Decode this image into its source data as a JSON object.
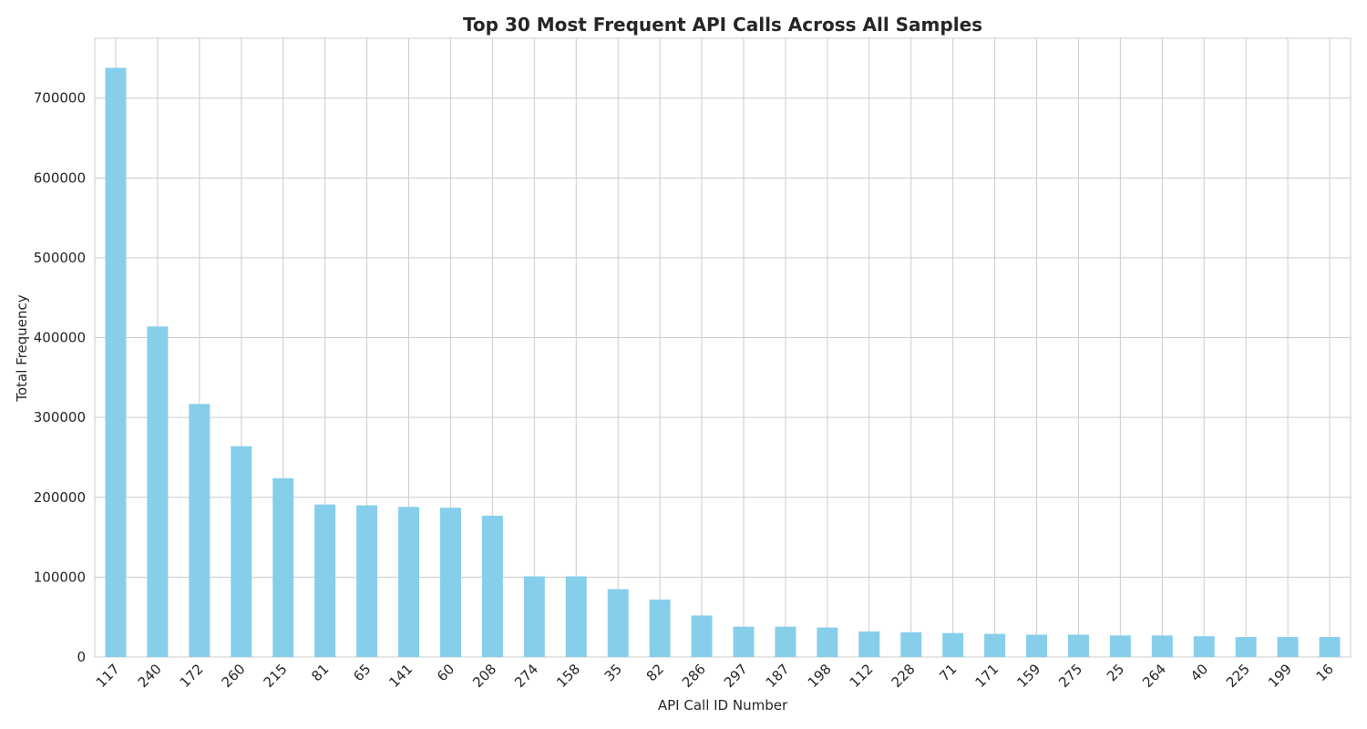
{
  "chart_data": {
    "type": "bar",
    "title": "Top 30 Most Frequent API Calls Across All Samples",
    "xlabel": "API Call ID Number",
    "ylabel": "Total Frequency",
    "categories": [
      "117",
      "240",
      "172",
      "260",
      "215",
      "81",
      "65",
      "141",
      "60",
      "208",
      "274",
      "158",
      "35",
      "82",
      "286",
      "297",
      "187",
      "198",
      "112",
      "228",
      "71",
      "171",
      "159",
      "275",
      "25",
      "264",
      "40",
      "225",
      "199",
      "16"
    ],
    "values": [
      738000,
      414000,
      317000,
      264000,
      224000,
      191000,
      190000,
      188000,
      187000,
      177000,
      101000,
      101000,
      85000,
      72000,
      52000,
      38000,
      38000,
      37000,
      32000,
      31000,
      30000,
      29000,
      28000,
      28000,
      27000,
      27000,
      26000,
      25000,
      25000,
      25000
    ],
    "ylim": [
      0,
      775000
    ],
    "yticks": [
      0,
      100000,
      200000,
      300000,
      400000,
      500000,
      600000,
      700000
    ],
    "grid": true,
    "bar_color": "#87ceeb",
    "grid_color": "#cccccc"
  }
}
